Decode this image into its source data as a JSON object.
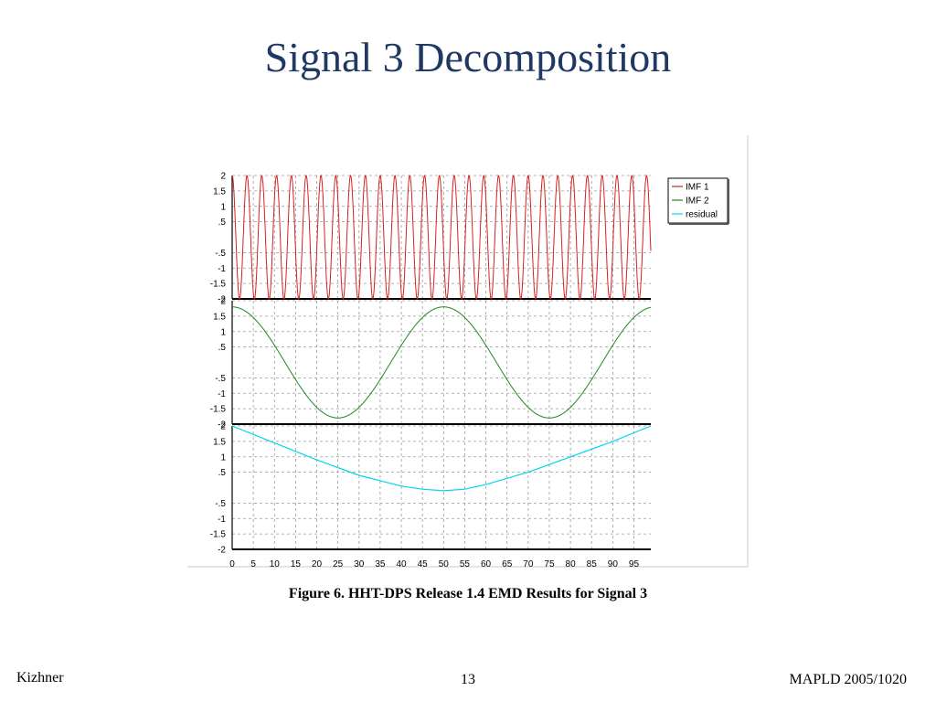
{
  "slide": {
    "title": "Signal 3 Decomposition",
    "caption": "Figure 6. HHT-DPS Release 1.4 EMD Results for Signal 3",
    "footer_left": "Kizhner",
    "page_number": "13",
    "footer_right": "MAPLD 2005/1020"
  },
  "chart_data": {
    "type": "line",
    "title": "",
    "xlabel": "",
    "ylabel": "",
    "xlim": [
      0,
      99
    ],
    "x_ticks": [
      0,
      5,
      10,
      15,
      20,
      25,
      30,
      35,
      40,
      45,
      50,
      55,
      60,
      65,
      70,
      75,
      80,
      85,
      90,
      95
    ],
    "y_ticks": [
      "2",
      "1.5",
      "1",
      ".5",
      "-.5",
      "-1",
      "-1.5",
      "-2"
    ],
    "panels": [
      {
        "series": "IMF 1",
        "ylim": [
          -2,
          2
        ]
      },
      {
        "series": "IMF 2",
        "ylim": [
          -2,
          2
        ]
      },
      {
        "series": "residual",
        "ylim": [
          -2,
          2
        ]
      }
    ],
    "series": [
      {
        "name": "IMF 1",
        "color": "#d62020",
        "description_form": "sinusoid",
        "amplitude": 2,
        "period": 3.5,
        "x_start": 0,
        "x_end": 99
      },
      {
        "name": "IMF 2",
        "color": "#1f8a1f",
        "description_form": "cosine",
        "amplitude": 1.8,
        "period": 50,
        "x_start": 0,
        "x_end": 99
      },
      {
        "name": "residual",
        "color": "#00d8e8",
        "points": [
          [
            0,
            2
          ],
          [
            10,
            1.45
          ],
          [
            20,
            0.9
          ],
          [
            30,
            0.4
          ],
          [
            40,
            0.05
          ],
          [
            45,
            -0.05
          ],
          [
            50,
            -0.1
          ],
          [
            55,
            -0.05
          ],
          [
            60,
            0.1
          ],
          [
            70,
            0.5
          ],
          [
            80,
            1.0
          ],
          [
            90,
            1.5
          ],
          [
            99,
            2.0
          ]
        ]
      }
    ],
    "grid": true,
    "legend": "top-right"
  }
}
